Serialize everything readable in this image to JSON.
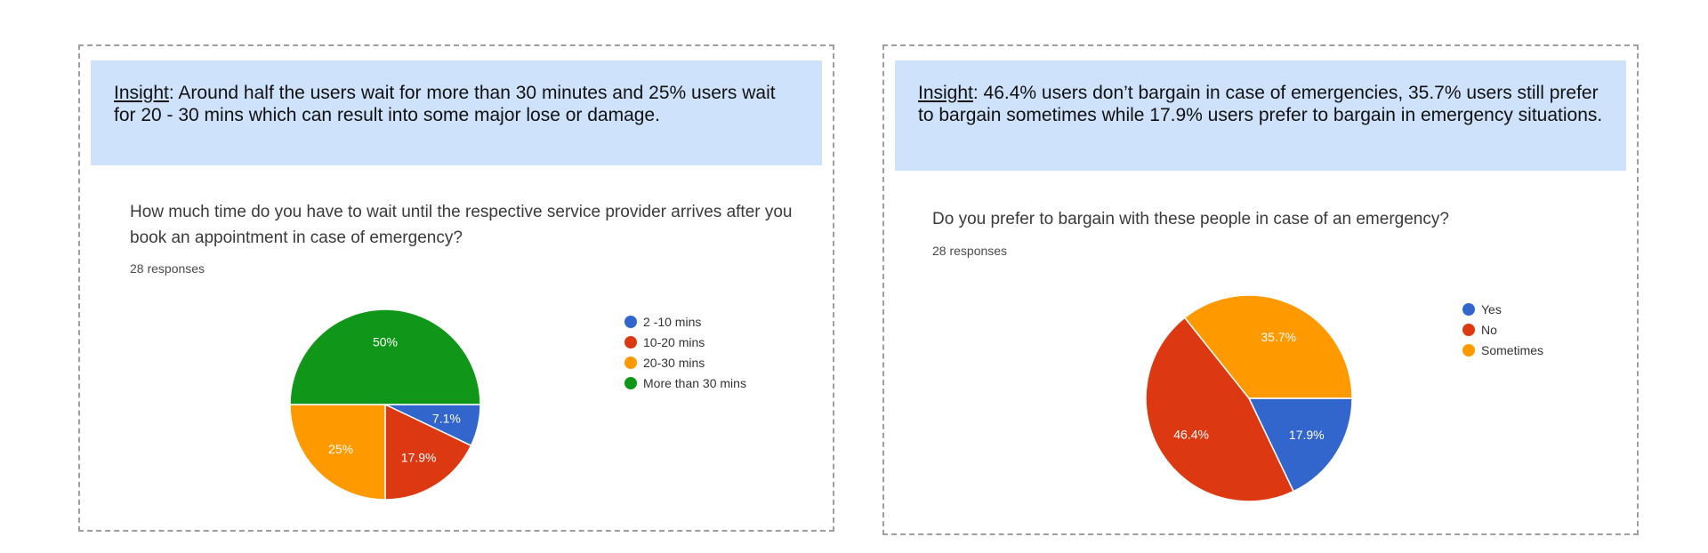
{
  "card1": {
    "insight": {
      "keyword": "Insight",
      "text": ": Around half the users wait for more than 30 minutes and 25% users wait for 20 - 30 mins which can result into some major lose or damage."
    },
    "question": "How much time do you have to wait until the respective service provider arrives after you book an appointment in case of emergency?",
    "responses": "28 responses"
  },
  "card2": {
    "insight": {
      "keyword": "Insight",
      "text": ": 46.4% users don’t bargain in case of emergencies, 35.7% users still prefer to bargain sometimes while 17.9% users prefer to bargain in emergency situations."
    },
    "question": "Do you prefer to bargain with these people in case of an emergency?",
    "responses": "28 responses"
  },
  "colors": {
    "blue": "#3366cc",
    "red": "#dc3912",
    "orange": "#ff9900",
    "green": "#109618",
    "insight_bg": "#cfe2fb"
  },
  "chart_data": [
    {
      "type": "pie",
      "title": "How much time do you have to wait until the respective service provider arrives after you book an appointment in case of emergency?",
      "categories": [
        "2 -10 mins",
        "10-20 mins",
        "20-30 mins",
        "More than 30 mins"
      ],
      "values": [
        7.1,
        17.9,
        25,
        50
      ],
      "labels": [
        "7.1%",
        "17.9%",
        "25%",
        "50%"
      ],
      "colors": [
        "#3366cc",
        "#dc3912",
        "#ff9900",
        "#109618"
      ],
      "legend": "right"
    },
    {
      "type": "pie",
      "title": "Do you prefer to bargain with these people in case of an emergency?",
      "categories": [
        "Yes",
        "No",
        "Sometimes"
      ],
      "values": [
        17.9,
        46.4,
        35.7
      ],
      "labels": [
        "17.9%",
        "46.4%",
        "35.7%"
      ],
      "colors": [
        "#3366cc",
        "#dc3912",
        "#ff9900"
      ],
      "legend": "right"
    }
  ]
}
